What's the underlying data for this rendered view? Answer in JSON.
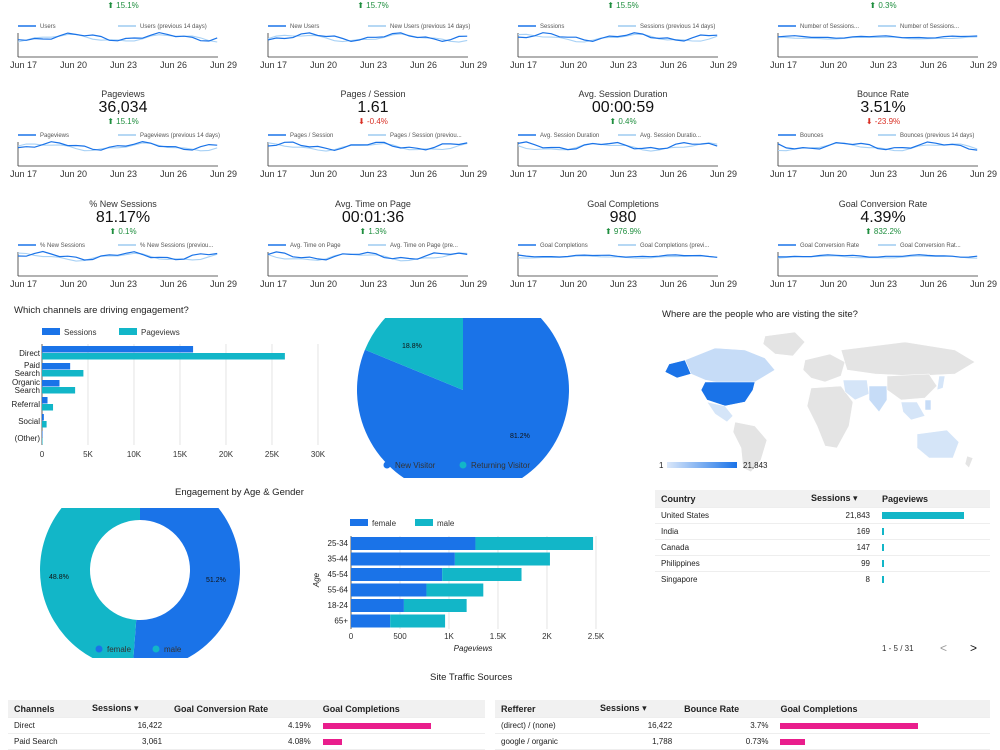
{
  "kpis_top_partial": [
    {
      "change": "15.1%",
      "dir": "up",
      "legend": [
        "Users",
        "Users (previous 14 days)"
      ]
    },
    {
      "change": "15.7%",
      "dir": "up",
      "legend": [
        "New Users",
        "New Users (previous 14 days)"
      ]
    },
    {
      "change": "15.5%",
      "dir": "up",
      "legend": [
        "Sessions",
        "Sessions (previous 14 days)"
      ]
    },
    {
      "change": "0.3%",
      "dir": "up",
      "legend": [
        "Number of Sessions...",
        "Number of Sessions..."
      ]
    }
  ],
  "kpis_row2": [
    {
      "label": "Pageviews",
      "value": "36,034",
      "change": "15.1%",
      "dir": "up",
      "legend": [
        "Pageviews",
        "Pageviews (previous 14 days)"
      ]
    },
    {
      "label": "Pages / Session",
      "value": "1.61",
      "change": "-0.4%",
      "dir": "down",
      "legend": [
        "Pages / Session",
        "Pages / Session (previou..."
      ]
    },
    {
      "label": "Avg. Session Duration",
      "value": "00:00:59",
      "change": "0.4%",
      "dir": "up",
      "legend": [
        "Avg. Session Duration",
        "Avg. Session Duratio..."
      ]
    },
    {
      "label": "Bounce Rate",
      "value": "3.51%",
      "change": "-23.9%",
      "dir": "down",
      "legend": [
        "Bounces",
        "Bounces (previous 14 days)"
      ]
    }
  ],
  "kpis_row3": [
    {
      "label": "% New Sessions",
      "value": "81.17%",
      "change": "0.1%",
      "dir": "up",
      "legend": [
        "% New Sessions",
        "% New Sessions (previou..."
      ]
    },
    {
      "label": "Avg. Time on Page",
      "value": "00:01:36",
      "change": "1.3%",
      "dir": "up",
      "legend": [
        "Avg. Time on Page",
        "Avg. Time on Page (pre..."
      ]
    },
    {
      "label": "Goal Completions",
      "value": "980",
      "change": "976.9%",
      "dir": "up",
      "legend": [
        "Goal Completions",
        "Goal Completions (previ..."
      ]
    },
    {
      "label": "Goal Conversion Rate",
      "value": "4.39%",
      "change": "832.2%",
      "dir": "up",
      "legend": [
        "Goal Conversion Rate",
        "Goal Conversion Rat..."
      ]
    }
  ],
  "spark_xticks": [
    "Jun 17",
    "Jun 20",
    "Jun 23",
    "Jun 26",
    "Jun 29"
  ],
  "channels_title": "Which channels are driving engagement?",
  "map_title": "Where are the people who are visting the site?",
  "age_gender_title": "Engagement by Age & Gender",
  "traffic_title": "Site Traffic Sources",
  "chart_data": [
    {
      "type": "bar",
      "orientation": "horizontal",
      "categories": [
        "Direct",
        "Paid Search",
        "Organic Search",
        "Referral",
        "Social",
        "(Other)"
      ],
      "series": [
        {
          "name": "Sessions",
          "values": [
            16422,
            3061,
            1900,
            600,
            200,
            20
          ],
          "color": "#1a73e8"
        },
        {
          "name": "Pageviews",
          "values": [
            26400,
            4500,
            3600,
            1200,
            500,
            40
          ],
          "color": "#12b6c8"
        }
      ],
      "xticks": [
        "0",
        "5K",
        "10K",
        "15K",
        "20K",
        "25K",
        "30K"
      ],
      "xlim": [
        0,
        30000
      ]
    },
    {
      "type": "pie",
      "labels": [
        "New Visitor",
        "Returning Visitor"
      ],
      "values": [
        81.2,
        18.8
      ],
      "value_labels": [
        "81.2%",
        "18.8%"
      ],
      "colors": [
        "#1a73e8",
        "#12b6c8"
      ]
    },
    {
      "type": "pie",
      "donut": true,
      "labels": [
        "female",
        "male"
      ],
      "values": [
        51.2,
        48.8
      ],
      "value_labels": [
        "51.2%",
        "48.8%"
      ],
      "colors": [
        "#1a73e8",
        "#12b6c8"
      ]
    },
    {
      "type": "bar",
      "orientation": "horizontal",
      "stacked": true,
      "categories": [
        "25-34",
        "35-44",
        "45-54",
        "55-64",
        "18-24",
        "65+"
      ],
      "series": [
        {
          "name": "female",
          "values": [
            1270,
            1060,
            930,
            770,
            540,
            400
          ],
          "color": "#1a73e8"
        },
        {
          "name": "male",
          "values": [
            1200,
            970,
            810,
            580,
            640,
            560
          ],
          "color": "#12b6c8"
        }
      ],
      "xticks": [
        "0",
        "500",
        "1K",
        "1.5K",
        "2K",
        "2.5K"
      ],
      "xlim": [
        0,
        2500
      ],
      "xlabel": "Pageviews",
      "ylabel": "Age"
    }
  ],
  "map_legend": {
    "min": "1",
    "max": "21,843"
  },
  "country_table": {
    "headers": [
      "Country",
      "Sessions",
      "Pageviews"
    ],
    "rows": [
      {
        "country": "United States",
        "sessions": "21,843",
        "pv": 1.0
      },
      {
        "country": "India",
        "sessions": "169",
        "pv": 0.01
      },
      {
        "country": "Canada",
        "sessions": "147",
        "pv": 0.01
      },
      {
        "country": "Philippines",
        "sessions": "99",
        "pv": 0.005
      },
      {
        "country": "Singapore",
        "sessions": "8",
        "pv": 0.003
      }
    ],
    "pagination": "1 - 5 / 31"
  },
  "channels_table": {
    "headers": [
      "Channels",
      "Sessions",
      "Goal Conversion Rate",
      "Goal Completions"
    ],
    "rows": [
      {
        "name": "Direct",
        "sessions": "16,422",
        "rate": "4.19%",
        "gc": 1.0
      },
      {
        "name": "Paid Search",
        "sessions": "3,061",
        "rate": "4.08%",
        "gc": 0.18
      }
    ]
  },
  "referrer_table": {
    "headers": [
      "Refferer",
      "Sessions",
      "Bounce Rate",
      "Goal Completions"
    ],
    "rows": [
      {
        "name": "(direct) / (none)",
        "sessions": "16,422",
        "rate": "3.7%",
        "gc": 1.0
      },
      {
        "name": "google / organic",
        "sessions": "1,788",
        "rate": "0.73%",
        "gc": 0.18
      }
    ]
  },
  "colors": {
    "primary": "#1a73e8",
    "secondary": "#12b6c8",
    "magenta": "#e91e8c",
    "up": "#1e8e3e",
    "down": "#d93025"
  }
}
